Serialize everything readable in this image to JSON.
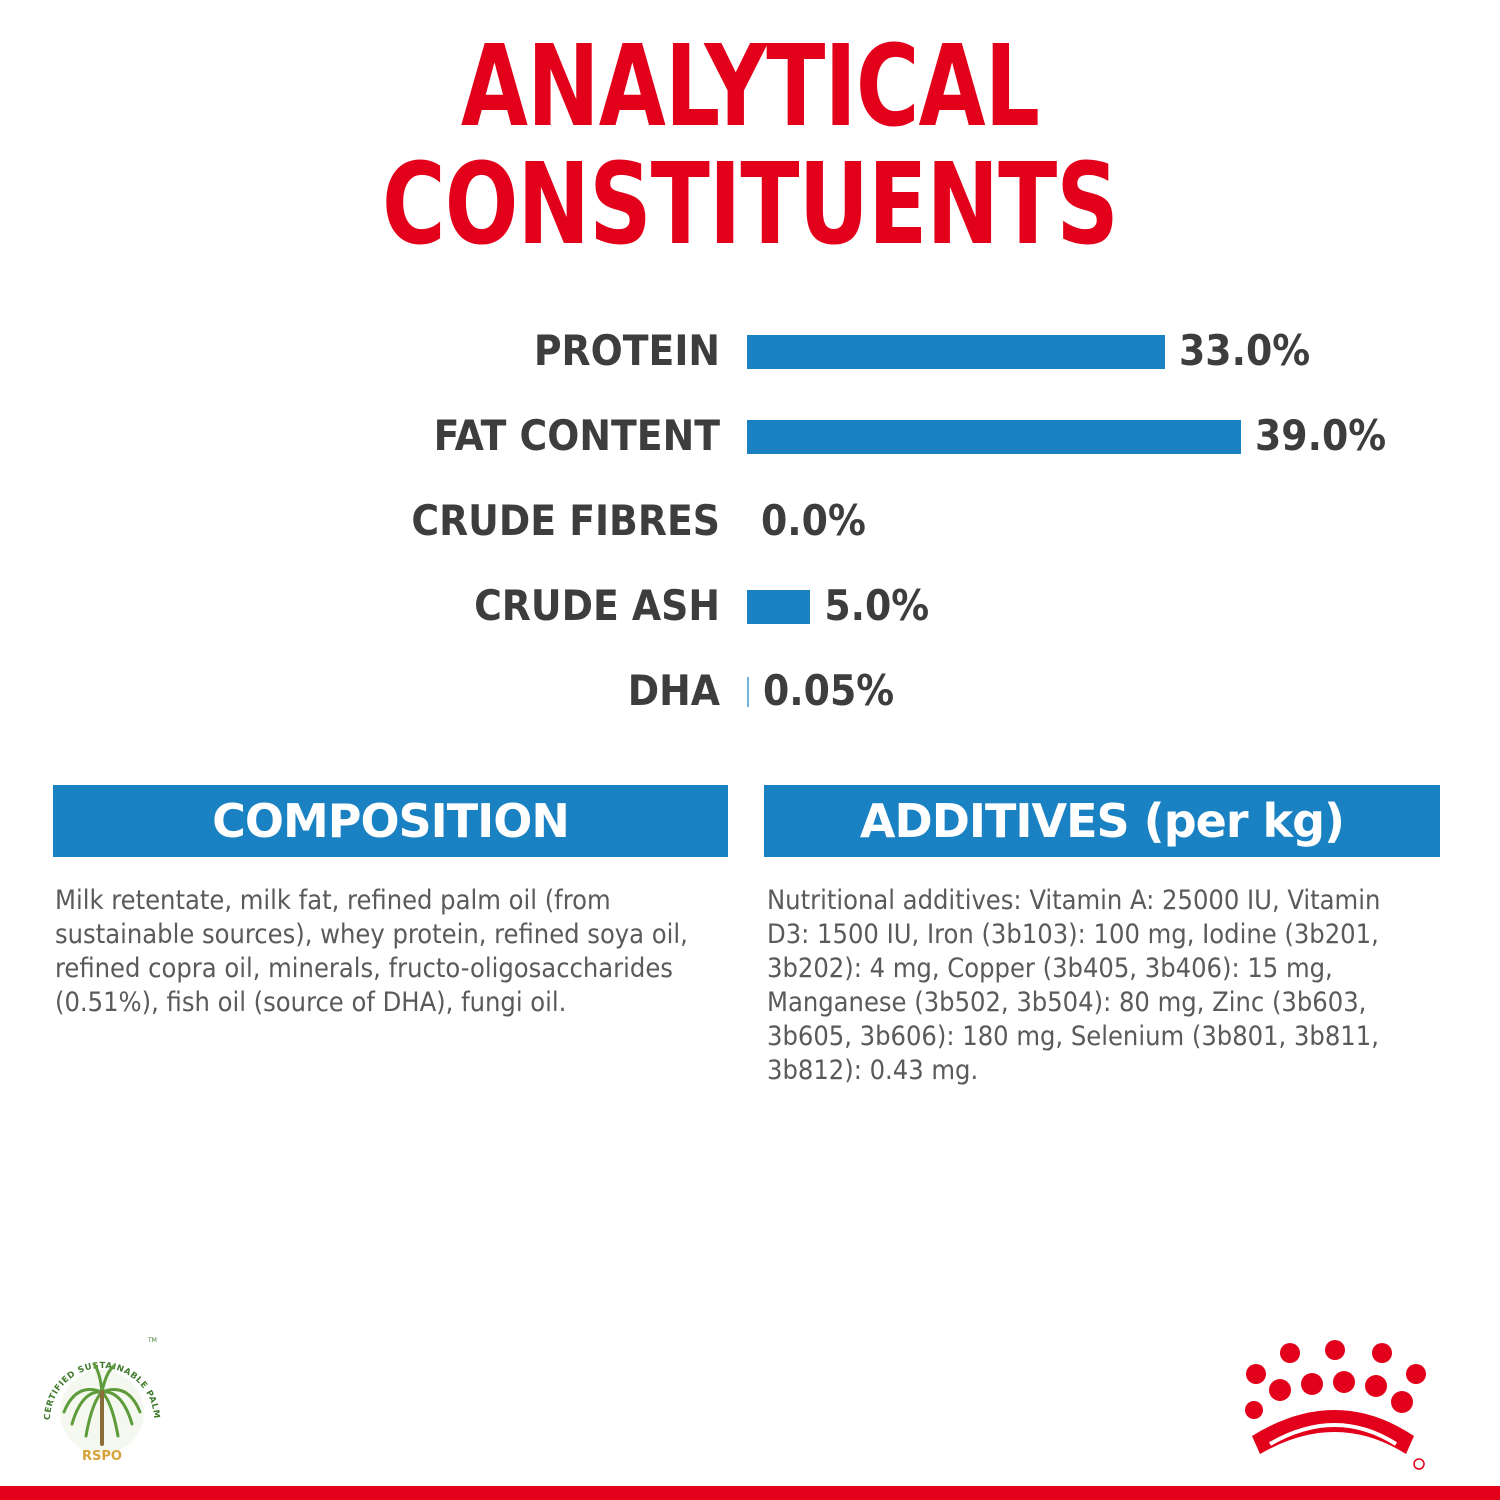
{
  "title": {
    "line1": "ANALYTICAL",
    "line2": "CONSTITUENTS"
  },
  "chart_data": {
    "type": "bar",
    "orientation": "horizontal",
    "categories": [
      "PROTEIN",
      "FAT CONTENT",
      "CRUDE FIBRES",
      "CRUDE ASH",
      "DHA"
    ],
    "values": [
      33.0,
      39.0,
      0.0,
      5.0,
      0.05
    ],
    "value_labels": [
      "33.0%",
      "39.0%",
      "0.0%",
      "5.0%",
      "0.05%"
    ],
    "unit": "%",
    "xlim": [
      0,
      39.0
    ],
    "bar_color": "#1a82c3",
    "grid": false,
    "legend": "none"
  },
  "composition": {
    "header": "COMPOSITION",
    "text": "Milk retentate, milk fat, refined palm oil (from sustainable sources), whey protein, refined soya oil, refined copra oil, minerals, fructo-oligosaccharides (0.51%), fish oil (source of DHA), fungi oil."
  },
  "additives": {
    "header": "ADDITIVES (per kg)",
    "text": "Nutritional additives: Vitamin A: 25000 IU, Vitamin D3: 1500 IU, Iron (3b103): 100 mg, Iodine (3b201, 3b202): 4 mg, Copper (3b405, 3b406): 15 mg, Manganese (3b502, 3b504): 80 mg, Zinc (3b603, 3b605, 3b606): 180 mg, Selenium (3b801, 3b811, 3b812): 0.43 mg."
  },
  "rspo_logo": {
    "icon": "palm-tree-icon",
    "ring_text": "CERTIFIED SUSTAINABLE PALM OIL",
    "tm": "TM",
    "label": "RSPO"
  },
  "brand_logo": {
    "icon": "royal-canin-crown-icon"
  },
  "colors": {
    "title": "#e2001a",
    "accent": "#1a82c3",
    "text": "#3d3d3d",
    "brand_red": "#e2001a"
  }
}
